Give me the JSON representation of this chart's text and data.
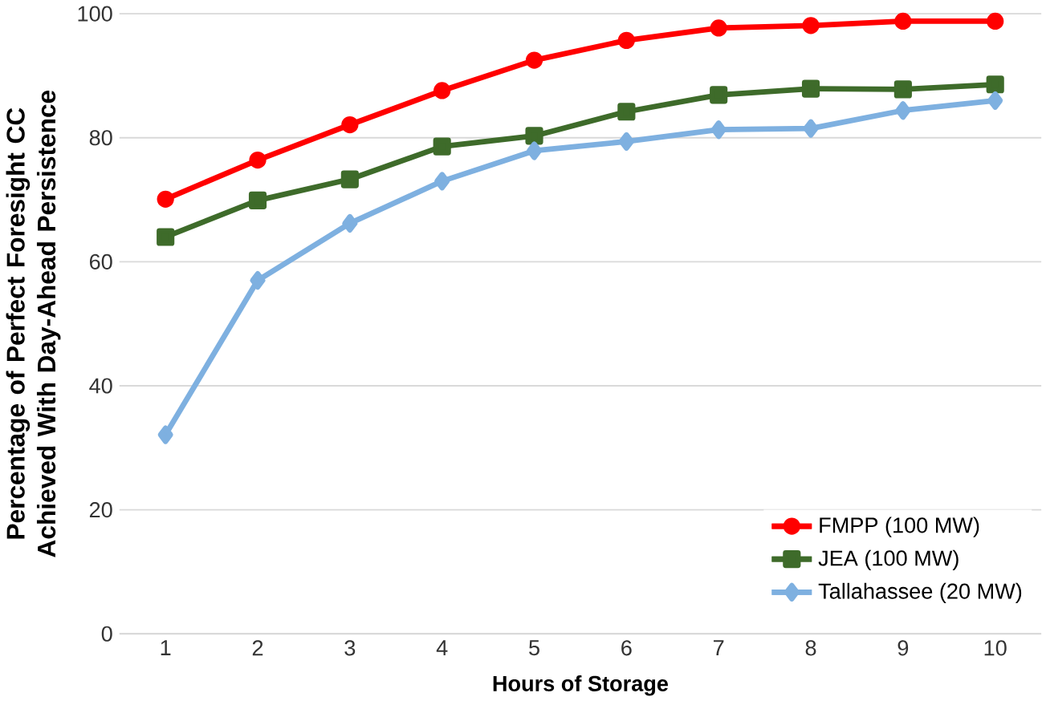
{
  "chart_data": {
    "type": "line",
    "xlabel": "Hours of Storage",
    "ylabel": "Percentage of Perfect Foresight CC Achieved With Day-Ahead Persistence",
    "categories": [
      "1",
      "2",
      "3",
      "4",
      "5",
      "6",
      "7",
      "8",
      "9",
      "10"
    ],
    "series": [
      {
        "name": "FMPP (100 MW)",
        "color": "#ff0000",
        "marker": "circle",
        "values": [
          70.1,
          76.4,
          82.1,
          87.6,
          92.5,
          95.7,
          97.7,
          98.1,
          98.8,
          98.8
        ]
      },
      {
        "name": "JEA (100 MW)",
        "color": "#3e6b2a",
        "marker": "square",
        "values": [
          64.0,
          69.9,
          73.3,
          78.6,
          80.3,
          84.2,
          86.9,
          87.9,
          87.8,
          88.6
        ]
      },
      {
        "name": "Tallahassee  (20 MW)",
        "color": "#7eb0e0",
        "marker": "diamond",
        "values": [
          32.1,
          57.0,
          66.2,
          73.0,
          77.9,
          79.4,
          81.3,
          81.5,
          84.4,
          86.0
        ]
      }
    ],
    "ylim": [
      0,
      100
    ],
    "yticks": [
      0,
      20,
      40,
      60,
      80,
      100
    ],
    "grid": "y",
    "legend": "bottom right"
  }
}
